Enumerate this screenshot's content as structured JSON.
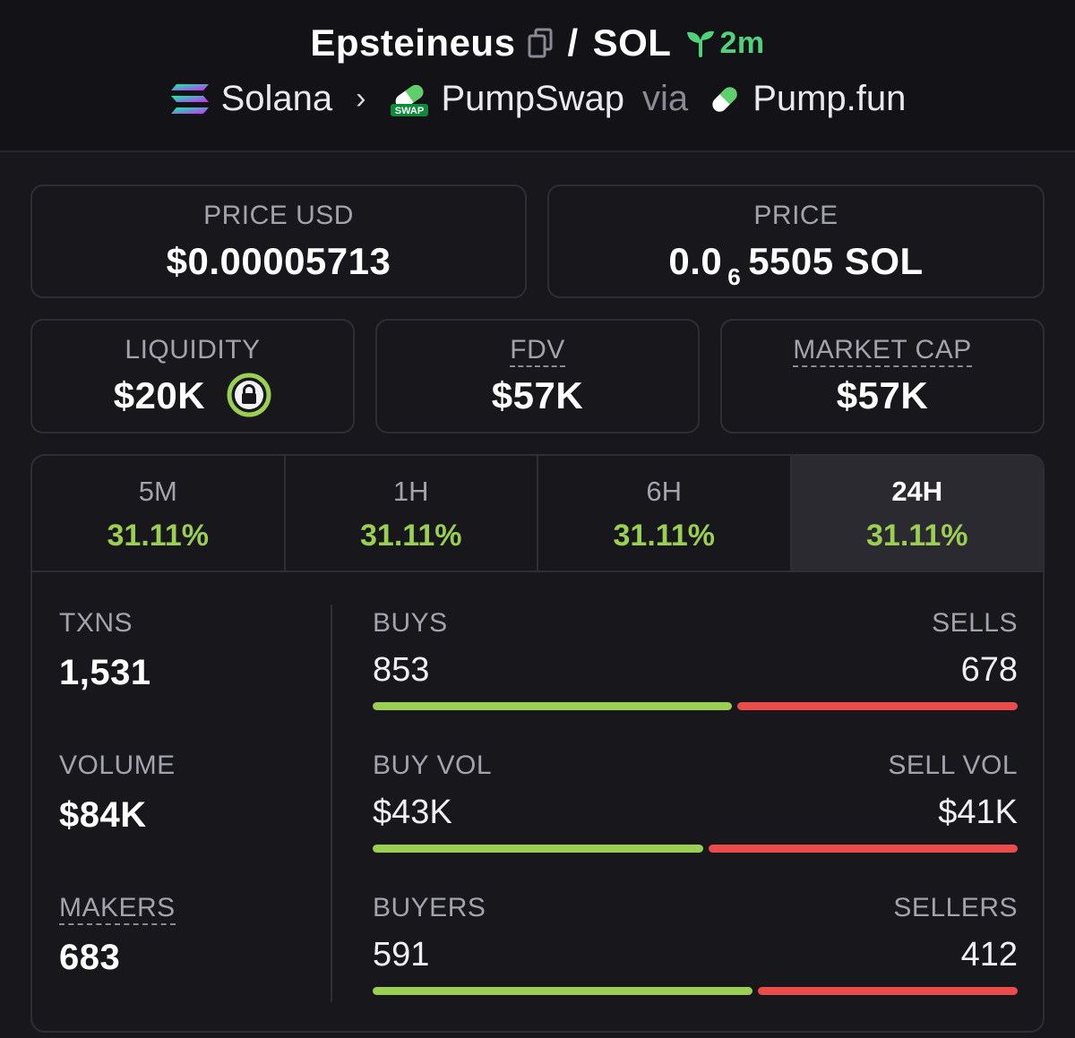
{
  "header": {
    "token_name": "Epsteineus",
    "slash": "/",
    "quote": "SOL",
    "age": "2m",
    "chain": "Solana",
    "separator": "›",
    "dex": "PumpSwap",
    "dex_badge": "SWAP",
    "via": "via",
    "launchpad": "Pump.fun"
  },
  "price_usd": {
    "label": "PRICE USD",
    "value": "$0.00005713"
  },
  "price": {
    "label": "PRICE",
    "prefix": "0.0",
    "zeros": "6",
    "suffix": "5505 SOL"
  },
  "liquidity": {
    "label": "LIQUIDITY",
    "value": "$20K"
  },
  "fdv": {
    "label": "FDV",
    "value": "$57K"
  },
  "market_cap": {
    "label": "MARKET CAP",
    "value": "$57K"
  },
  "tabs": [
    {
      "label": "5M",
      "value": "31.11%"
    },
    {
      "label": "1H",
      "value": "31.11%"
    },
    {
      "label": "6H",
      "value": "31.11%"
    },
    {
      "label": "24H",
      "value": "31.11%",
      "active": true
    }
  ],
  "stats": {
    "txns": {
      "label": "TXNS",
      "value": "1,531"
    },
    "volume": {
      "label": "VOLUME",
      "value": "$84K"
    },
    "makers": {
      "label": "MAKERS",
      "value": "683"
    },
    "buys_sells": {
      "left_label": "BUYS",
      "right_label": "SELLS",
      "left": "853",
      "right": "678",
      "buy_fraction": 0.557
    },
    "vol_split": {
      "left_label": "BUY VOL",
      "right_label": "SELL VOL",
      "left": "$43K",
      "right": "$41K",
      "buy_fraction": 0.512
    },
    "makers_split": {
      "left_label": "BUYERS",
      "right_label": "SELLERS",
      "left": "591",
      "right": "412",
      "buy_fraction": 0.589
    }
  },
  "colors": {
    "positive": "#9bcf53",
    "buy_bar": "#9bcf53",
    "sell_bar": "#ea4b4b",
    "age": "#4fd27b",
    "background": "#17171c"
  }
}
